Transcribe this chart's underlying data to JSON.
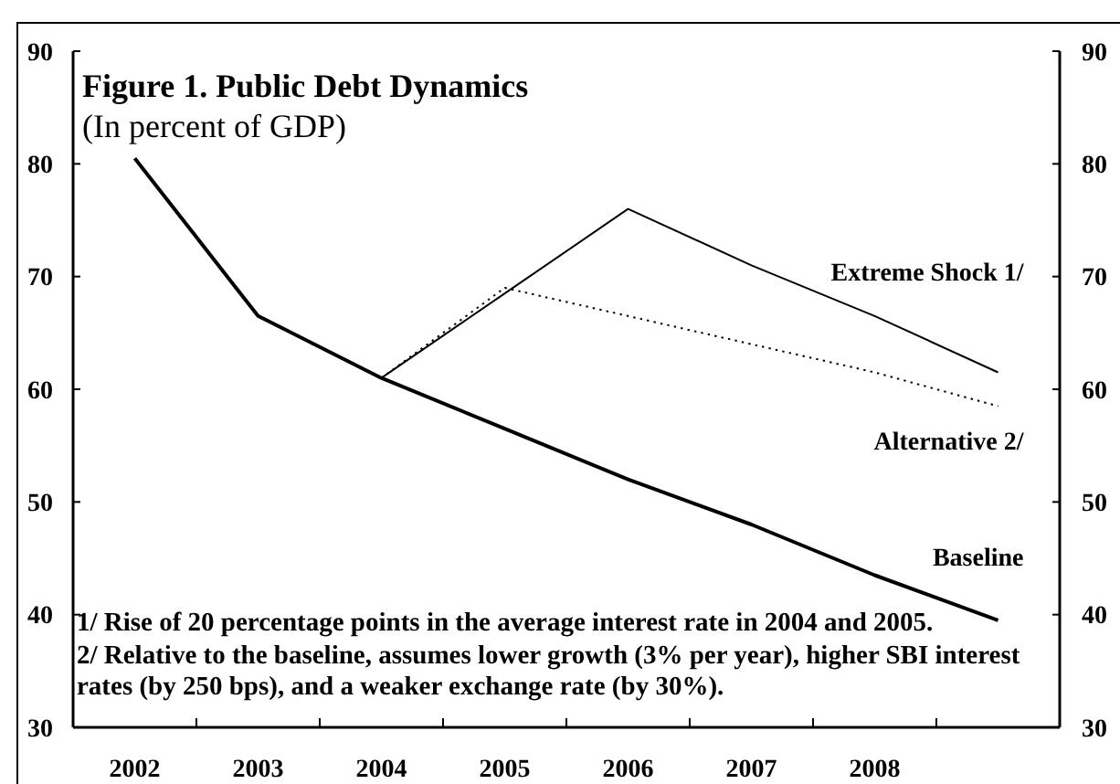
{
  "chart_data": {
    "type": "line",
    "title": "Figure 1. Public Debt Dynamics",
    "subtitle": "(In percent of GDP)",
    "categories": [
      "2002",
      "2003",
      "2004",
      "2005",
      "2006",
      "2007",
      "2008",
      null
    ],
    "series": [
      {
        "name": "Baseline",
        "color": "#000000",
        "line_style": "solid",
        "values": [
          80.5,
          66.5,
          61,
          56.5,
          52,
          48,
          43.5,
          39.5
        ]
      },
      {
        "name": "Extreme Shock 1/",
        "color": "#000000",
        "line_style": "solid",
        "values": [
          null,
          null,
          61,
          68.5,
          76,
          71,
          66.5,
          61.5
        ]
      },
      {
        "name": "Alternative 2/",
        "color": "#000000",
        "line_style": "dotted",
        "values": [
          null,
          null,
          61,
          69,
          66.5,
          64,
          61.5,
          58.5
        ]
      }
    ],
    "ylim": [
      30,
      90
    ],
    "yticks": [
      30,
      40,
      50,
      60,
      70,
      80,
      90
    ],
    "y2lim": [
      30,
      90
    ],
    "y2ticks": [
      30,
      40,
      50,
      60,
      70,
      80,
      90
    ],
    "annotations": [
      "1/ Rise of 20 percentage points in the average interest rate in 2004 and 2005.",
      "2/ Relative to the baseline, assumes lower growth (3% per year), higher SBI interest rates (by 250 bps), and a weaker exchange rate (by 30%)."
    ],
    "marker": "none",
    "grid": false,
    "legend": false
  }
}
